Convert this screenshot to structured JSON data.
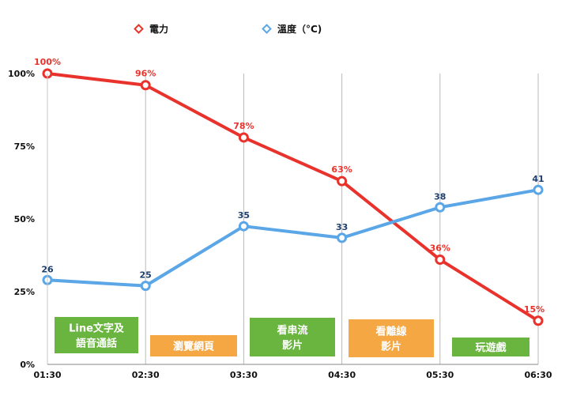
{
  "chart_data": {
    "type": "line",
    "categories": [
      "01:30",
      "02:30",
      "03:30",
      "04:30",
      "05:30",
      "06:30"
    ],
    "y_ticks": [
      "0%",
      "25%",
      "50%",
      "75%",
      "100%"
    ],
    "ylim": [
      0,
      100
    ],
    "grid": "vertical",
    "legend_position": "top",
    "series": [
      {
        "name": "電力",
        "color": "#e8322b",
        "values": [
          100,
          96,
          78,
          63,
          36,
          15
        ],
        "labels": [
          "100%",
          "96%",
          "78%",
          "63%",
          "36%",
          "15%"
        ]
      },
      {
        "name": "溫度（°C)",
        "color": "#5aa6e6",
        "values": [
          29,
          27,
          47.5,
          43.5,
          54,
          60
        ],
        "labels": [
          "26",
          "25",
          "35",
          "33",
          "38",
          "41"
        ]
      }
    ],
    "annotations": [
      {
        "lines": [
          "Line文字及",
          "語音通話"
        ],
        "color": "#6ab440"
      },
      {
        "lines": [
          "瀏覽網頁"
        ],
        "color": "#f4a742"
      },
      {
        "lines": [
          "看串流",
          "影片"
        ],
        "color": "#6ab440"
      },
      {
        "lines": [
          "看離線",
          "影片"
        ],
        "color": "#f4a742"
      },
      {
        "lines": [
          "玩遊戲"
        ],
        "color": "#6ab440"
      }
    ]
  }
}
